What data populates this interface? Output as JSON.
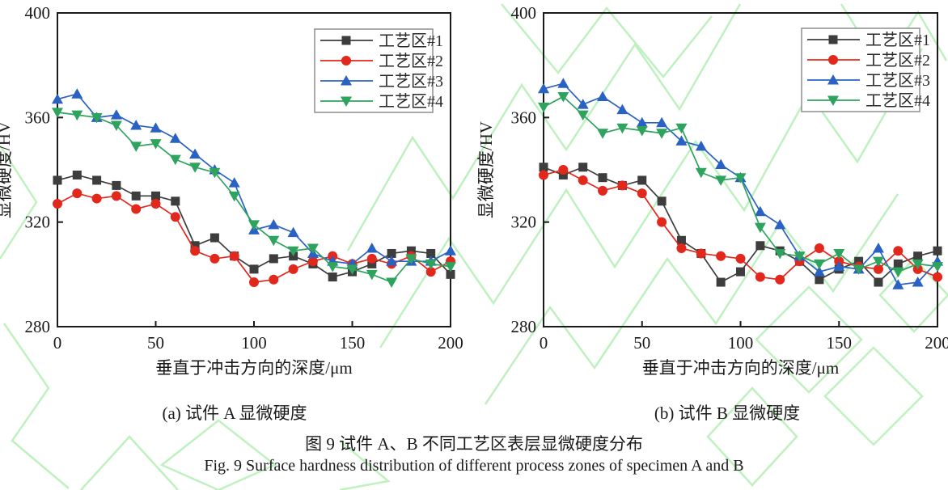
{
  "figure": {
    "caption_a": "(a) 试件 A 显微硬度",
    "caption_b": "(b) 试件 B 显微硬度",
    "title_cn": "图 9 试件 A、B 不同工艺区表层显微硬度分布",
    "title_en": "Fig. 9 Surface hardness distribution of different process zones of specimen A and B"
  },
  "colors": {
    "axis": "#1a1a1a",
    "zone1": "#3d3d3d",
    "zone2": "#e2271c",
    "zone3": "#2a62c3",
    "zone4": "#2ea35e",
    "watermark": "#a9edaa"
  },
  "chart_data": [
    {
      "type": "line",
      "title": "(a) 试件 A 显微硬度",
      "xlabel": "垂直于冲击方向的深度/μm",
      "ylabel": "显微硬度/HV",
      "xlim": [
        0,
        200
      ],
      "ylim": [
        280,
        400
      ],
      "xticks": [
        0,
        50,
        100,
        150,
        200
      ],
      "yticks": [
        280,
        320,
        360,
        400
      ],
      "grid": false,
      "legend_position": "top-right",
      "x": [
        0,
        10,
        20,
        30,
        40,
        50,
        60,
        70,
        80,
        90,
        100,
        110,
        120,
        130,
        140,
        150,
        160,
        170,
        180,
        190,
        200
      ],
      "series": [
        {
          "name": "工艺区#1",
          "marker": "square",
          "color": "#3d3d3d",
          "values": [
            336,
            338,
            336,
            334,
            330,
            330,
            328,
            311,
            314,
            307,
            302,
            306,
            307,
            304,
            299,
            301,
            304,
            308,
            309,
            308,
            300
          ]
        },
        {
          "name": "工艺区#2",
          "marker": "circle",
          "color": "#e2271c",
          "values": [
            327,
            331,
            329,
            330,
            325,
            327,
            322,
            309,
            306,
            307,
            297,
            298,
            302,
            305,
            307,
            304,
            306,
            304,
            307,
            301,
            305
          ]
        },
        {
          "name": "工艺区#3",
          "marker": "triangle-up",
          "color": "#2a62c3",
          "values": [
            367,
            369,
            360,
            361,
            357,
            356,
            352,
            346,
            340,
            335,
            317,
            319,
            316,
            308,
            305,
            304,
            310,
            305,
            305,
            305,
            309
          ]
        },
        {
          "name": "工艺区#4",
          "marker": "triangle-down",
          "color": "#2ea35e",
          "values": [
            362,
            361,
            360,
            357,
            349,
            350,
            344,
            341,
            339,
            330,
            319,
            313,
            309,
            310,
            303,
            302,
            300,
            297,
            306,
            304,
            303
          ]
        }
      ]
    },
    {
      "type": "line",
      "title": "(b) 试件 B 显微硬度",
      "xlabel": "垂直于冲击方向的深度/μm",
      "ylabel": "显微硬度/HV",
      "xlim": [
        0,
        200
      ],
      "ylim": [
        280,
        400
      ],
      "xticks": [
        0,
        50,
        100,
        150,
        200
      ],
      "yticks": [
        280,
        320,
        360,
        400
      ],
      "grid": false,
      "legend_position": "top-right",
      "x": [
        0,
        10,
        20,
        30,
        40,
        50,
        60,
        70,
        80,
        90,
        100,
        110,
        120,
        130,
        140,
        150,
        160,
        170,
        180,
        190,
        200
      ],
      "series": [
        {
          "name": "工艺区#1",
          "marker": "square",
          "color": "#3d3d3d",
          "values": [
            341,
            338,
            341,
            337,
            334,
            336,
            328,
            313,
            308,
            297,
            301,
            311,
            309,
            305,
            298,
            302,
            305,
            297,
            304,
            307,
            309
          ]
        },
        {
          "name": "工艺区#2",
          "marker": "circle",
          "color": "#e2271c",
          "values": [
            338,
            340,
            336,
            332,
            334,
            331,
            320,
            310,
            308,
            307,
            306,
            299,
            298,
            305,
            310,
            305,
            303,
            302,
            309,
            302,
            299
          ]
        },
        {
          "name": "工艺区#3",
          "marker": "triangle-up",
          "color": "#2a62c3",
          "values": [
            371,
            373,
            365,
            368,
            363,
            358,
            358,
            351,
            349,
            342,
            337,
            324,
            319,
            307,
            301,
            303,
            302,
            310,
            296,
            297,
            305
          ]
        },
        {
          "name": "工艺区#4",
          "marker": "triangle-down",
          "color": "#2ea35e",
          "values": [
            364,
            368,
            361,
            354,
            356,
            355,
            354,
            356,
            339,
            336,
            337,
            318,
            308,
            307,
            304,
            308,
            302,
            305,
            301,
            304,
            303
          ]
        }
      ]
    }
  ]
}
